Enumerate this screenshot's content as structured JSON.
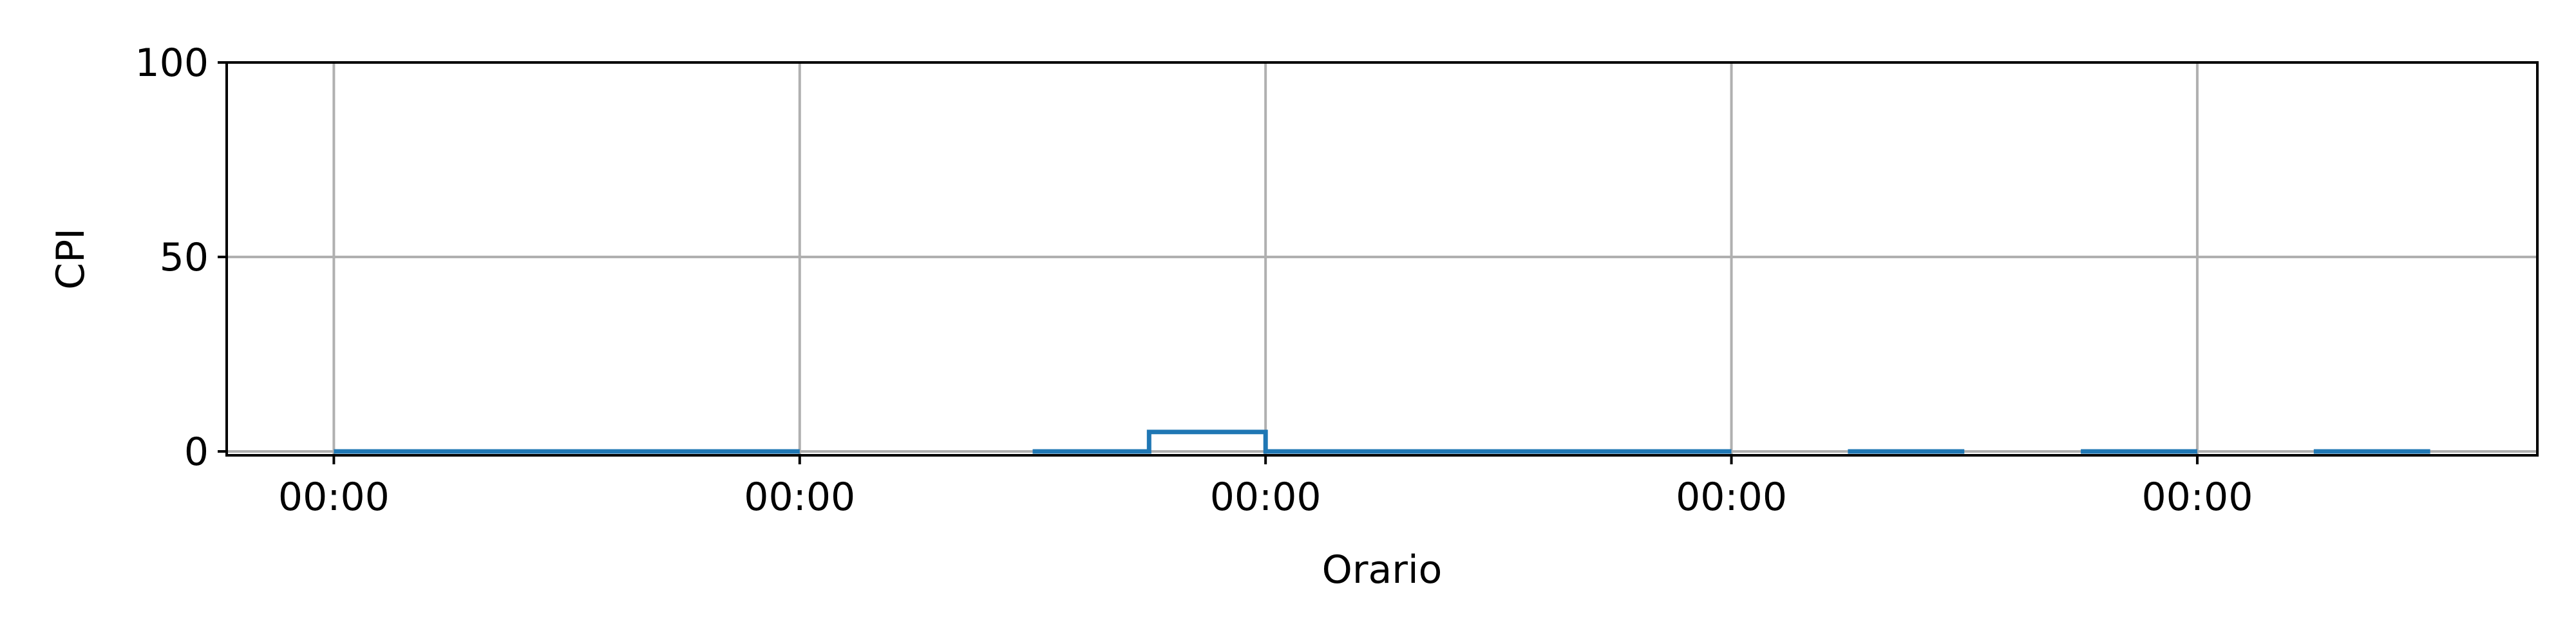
{
  "chart_data": {
    "type": "line",
    "step": true,
    "title": "",
    "xlabel": "Orario",
    "ylabel": "CPI",
    "xlim": [
      -0.23,
      4.73
    ],
    "ylim": [
      -1,
      100
    ],
    "grid": true,
    "x_ticks": [
      {
        "value": 0,
        "label": "00:00"
      },
      {
        "value": 1,
        "label": "00:00"
      },
      {
        "value": 2,
        "label": "00:00"
      },
      {
        "value": 3,
        "label": "00:00"
      },
      {
        "value": 4,
        "label": "00:00"
      }
    ],
    "y_ticks": [
      {
        "value": 0,
        "label": "0"
      },
      {
        "value": 50,
        "label": "50"
      },
      {
        "value": 100,
        "label": "100"
      }
    ],
    "colors": {
      "series": "#1f77b4",
      "grid": "#b0b0b0",
      "axis": "#000000"
    },
    "series": [
      {
        "segments": [
          [
            [
              0.0,
              0
            ],
            [
              1.0,
              0
            ]
          ],
          [
            [
              1.5,
              0
            ],
            [
              1.75,
              0
            ],
            [
              1.75,
              5
            ],
            [
              2.0,
              5
            ],
            [
              2.0,
              0
            ],
            [
              3.0,
              0
            ]
          ],
          [
            [
              3.25,
              0
            ],
            [
              3.5,
              0
            ]
          ],
          [
            [
              3.75,
              0
            ],
            [
              4.0,
              0
            ]
          ],
          [
            [
              4.25,
              0
            ],
            [
              4.5,
              0
            ]
          ]
        ]
      }
    ]
  }
}
